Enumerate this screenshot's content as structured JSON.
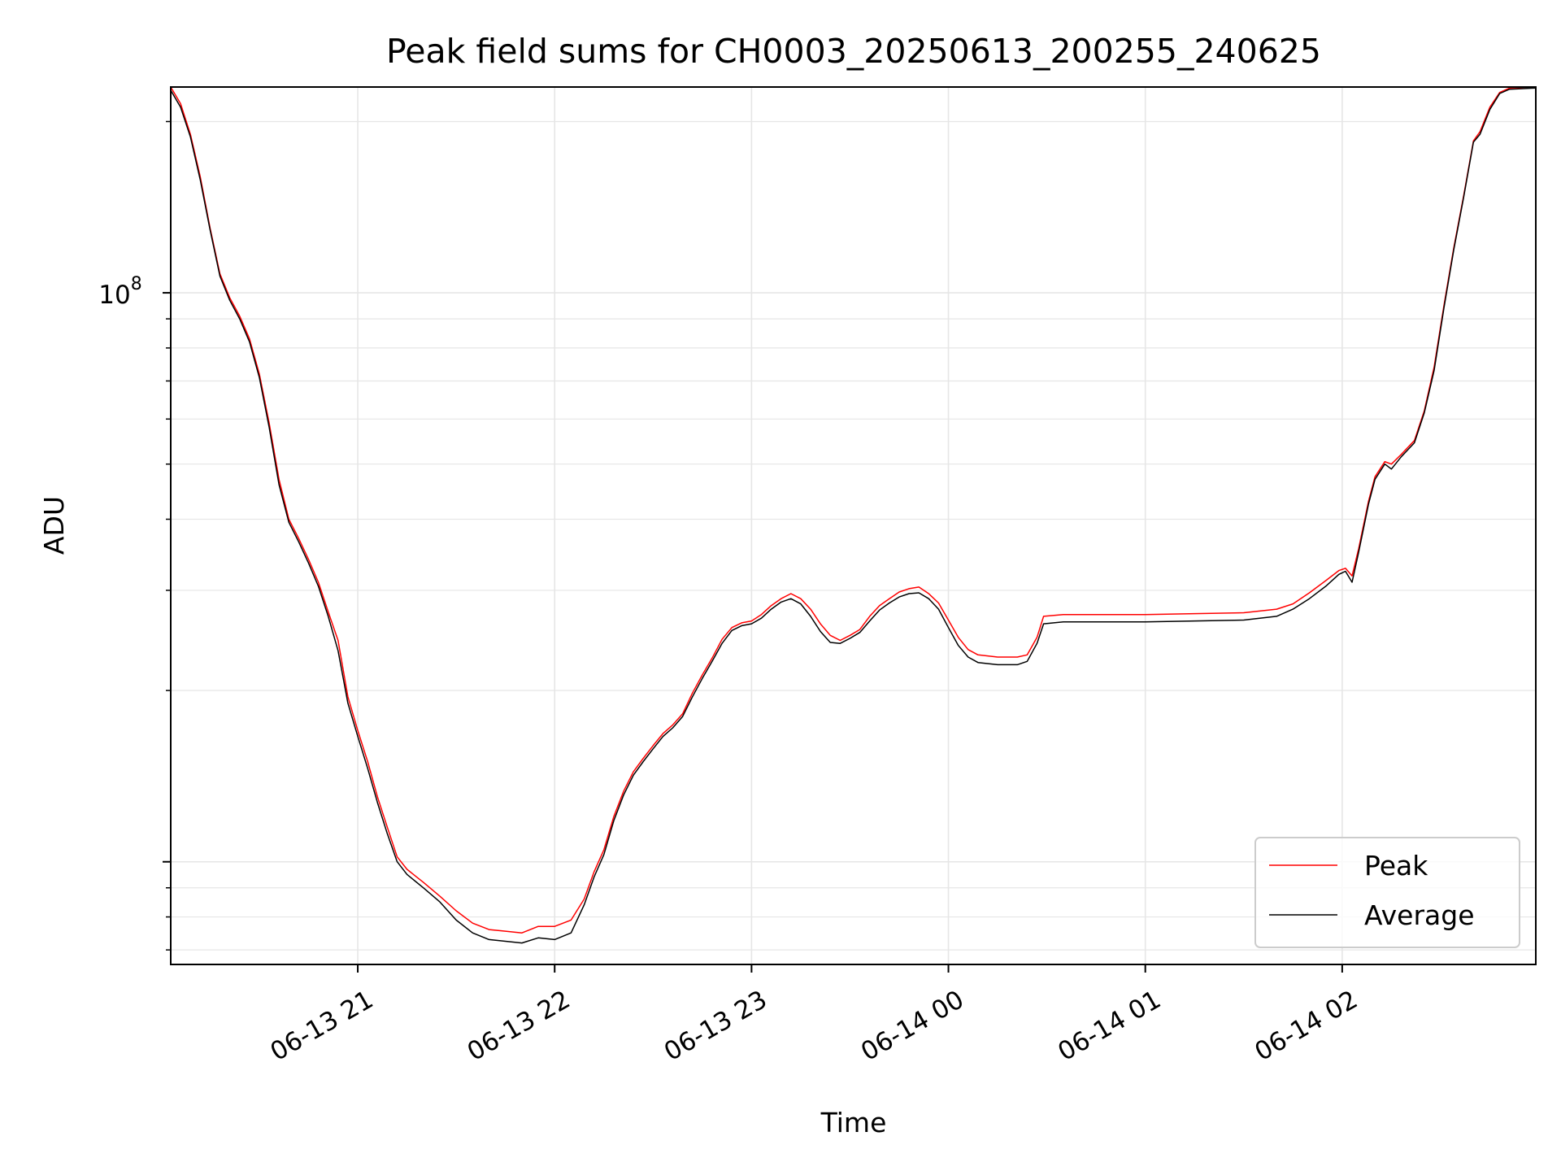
{
  "chart_data": {
    "type": "line",
    "title": "Peak field sums for CH0003_20250613_200255_240625",
    "xlabel": "Time",
    "ylabel": "ADU",
    "yscale": "log",
    "xlim": [
      "2025-06-13T20:03",
      "2025-06-14T02:59"
    ],
    "ylim": [
      6600000.0,
      230000000.0
    ],
    "grid": true,
    "legend_position": "lower right",
    "x_ticks": [
      {
        "t": "2025-06-13T21:00",
        "label": "06-13 21"
      },
      {
        "t": "2025-06-13T22:00",
        "label": "06-13 22"
      },
      {
        "t": "2025-06-13T23:00",
        "label": "06-13 23"
      },
      {
        "t": "2025-06-14T00:00",
        "label": "06-14 00"
      },
      {
        "t": "2025-06-14T01:00",
        "label": "06-14 01"
      },
      {
        "t": "2025-06-14T02:00",
        "label": "06-14 02"
      }
    ],
    "y_major_ticks": [
      {
        "value": 100000000.0,
        "base": "10",
        "exp": "8"
      }
    ],
    "series": [
      {
        "name": "Peak",
        "color": "#ff0000",
        "points": [
          [
            "2025-06-13T20:03",
            230000000.0
          ],
          [
            "2025-06-13T20:06",
            215000000.0
          ],
          [
            "2025-06-13T20:09",
            190000000.0
          ],
          [
            "2025-06-13T20:12",
            160000000.0
          ],
          [
            "2025-06-13T20:15",
            130000000.0
          ],
          [
            "2025-06-13T20:18",
            108000000.0
          ],
          [
            "2025-06-13T20:21",
            98000000.0
          ],
          [
            "2025-06-13T20:24",
            91000000.0
          ],
          [
            "2025-06-13T20:27",
            83000000.0
          ],
          [
            "2025-06-13T20:30",
            72000000.0
          ],
          [
            "2025-06-13T20:33",
            59000000.0
          ],
          [
            "2025-06-13T20:36",
            47000000.0
          ],
          [
            "2025-06-13T20:39",
            40000000.0
          ],
          [
            "2025-06-13T20:42",
            37000000.0
          ],
          [
            "2025-06-13T20:45",
            34000000.0
          ],
          [
            "2025-06-13T20:48",
            31000000.0
          ],
          [
            "2025-06-13T20:51",
            27500000.0
          ],
          [
            "2025-06-13T20:54",
            24500000.0
          ],
          [
            "2025-06-13T20:57",
            19500000.0
          ],
          [
            "2025-06-13T21:00",
            17000000.0
          ],
          [
            "2025-06-13T21:03",
            15000000.0
          ],
          [
            "2025-06-13T21:06",
            13000000.0
          ],
          [
            "2025-06-13T21:09",
            11500000.0
          ],
          [
            "2025-06-13T21:12",
            10200000.0
          ],
          [
            "2025-06-13T21:15",
            9700000.0
          ],
          [
            "2025-06-13T21:20",
            9200000.0
          ],
          [
            "2025-06-13T21:25",
            8700000.0
          ],
          [
            "2025-06-13T21:30",
            8200000.0
          ],
          [
            "2025-06-13T21:35",
            7800000.0
          ],
          [
            "2025-06-13T21:40",
            7600000.0
          ],
          [
            "2025-06-13T21:45",
            7550000.0
          ],
          [
            "2025-06-13T21:50",
            7500000.0
          ],
          [
            "2025-06-13T21:55",
            7700000.0
          ],
          [
            "2025-06-13T22:00",
            7700000.0
          ],
          [
            "2025-06-13T22:05",
            7900000.0
          ],
          [
            "2025-06-13T22:09",
            8600000.0
          ],
          [
            "2025-06-13T22:12",
            9600000.0
          ],
          [
            "2025-06-13T22:15",
            10500000.0
          ],
          [
            "2025-06-13T22:18",
            12000000.0
          ],
          [
            "2025-06-13T22:21",
            13300000.0
          ],
          [
            "2025-06-13T22:24",
            14400000.0
          ],
          [
            "2025-06-13T22:27",
            15200000.0
          ],
          [
            "2025-06-13T22:30",
            16000000.0
          ],
          [
            "2025-06-13T22:33",
            16800000.0
          ],
          [
            "2025-06-13T22:36",
            17400000.0
          ],
          [
            "2025-06-13T22:39",
            18200000.0
          ],
          [
            "2025-06-13T22:42",
            19800000.0
          ],
          [
            "2025-06-13T22:45",
            21300000.0
          ],
          [
            "2025-06-13T22:48",
            22800000.0
          ],
          [
            "2025-06-13T22:51",
            24600000.0
          ],
          [
            "2025-06-13T22:54",
            25800000.0
          ],
          [
            "2025-06-13T22:57",
            26300000.0
          ],
          [
            "2025-06-13T23:00",
            26500000.0
          ],
          [
            "2025-06-13T23:03",
            27200000.0
          ],
          [
            "2025-06-13T23:06",
            28200000.0
          ],
          [
            "2025-06-13T23:09",
            29000000.0
          ],
          [
            "2025-06-13T23:12",
            29600000.0
          ],
          [
            "2025-06-13T23:15",
            29000000.0
          ],
          [
            "2025-06-13T23:18",
            27800000.0
          ],
          [
            "2025-06-13T23:21",
            26200000.0
          ],
          [
            "2025-06-13T23:24",
            25000000.0
          ],
          [
            "2025-06-13T23:27",
            24500000.0
          ],
          [
            "2025-06-13T23:30",
            25000000.0
          ],
          [
            "2025-06-13T23:33",
            25600000.0
          ],
          [
            "2025-06-13T23:36",
            27000000.0
          ],
          [
            "2025-06-13T23:39",
            28200000.0
          ],
          [
            "2025-06-13T23:42",
            29000000.0
          ],
          [
            "2025-06-13T23:45",
            29800000.0
          ],
          [
            "2025-06-13T23:48",
            30200000.0
          ],
          [
            "2025-06-13T23:51",
            30400000.0
          ],
          [
            "2025-06-13T23:54",
            29600000.0
          ],
          [
            "2025-06-13T23:57",
            28500000.0
          ],
          [
            "2025-06-14T00:00",
            26600000.0
          ],
          [
            "2025-06-14T00:03",
            24800000.0
          ],
          [
            "2025-06-14T00:06",
            23600000.0
          ],
          [
            "2025-06-14T00:09",
            23100000.0
          ],
          [
            "2025-06-14T00:15",
            22900000.0
          ],
          [
            "2025-06-14T00:21",
            22900000.0
          ],
          [
            "2025-06-14T00:24",
            23100000.0
          ],
          [
            "2025-06-14T00:27",
            24800000.0
          ],
          [
            "2025-06-14T00:29",
            27000000.0
          ],
          [
            "2025-06-14T00:35",
            27200000.0
          ],
          [
            "2025-06-14T00:45",
            27200000.0
          ],
          [
            "2025-06-14T01:00",
            27200000.0
          ],
          [
            "2025-06-14T01:15",
            27300000.0
          ],
          [
            "2025-06-14T01:30",
            27400000.0
          ],
          [
            "2025-06-14T01:40",
            27800000.0
          ],
          [
            "2025-06-14T01:45",
            28400000.0
          ],
          [
            "2025-06-14T01:50",
            29700000.0
          ],
          [
            "2025-06-14T01:55",
            31200000.0
          ],
          [
            "2025-06-14T01:59",
            32500000.0
          ],
          [
            "2025-06-14T02:01",
            32800000.0
          ],
          [
            "2025-06-14T02:03",
            31800000.0
          ],
          [
            "2025-06-14T02:05",
            35500000.0
          ],
          [
            "2025-06-14T02:08",
            43000000.0
          ],
          [
            "2025-06-14T02:10",
            47500000.0
          ],
          [
            "2025-06-14T02:13",
            50500000.0
          ],
          [
            "2025-06-14T02:15",
            50000000.0
          ],
          [
            "2025-06-14T02:18",
            52000000.0
          ],
          [
            "2025-06-14T02:22",
            55000000.0
          ],
          [
            "2025-06-14T02:25",
            62000000.0
          ],
          [
            "2025-06-14T02:28",
            74000000.0
          ],
          [
            "2025-06-14T02:31",
            95000000.0
          ],
          [
            "2025-06-14T02:34",
            120000000.0
          ],
          [
            "2025-06-14T02:37",
            148000000.0
          ],
          [
            "2025-06-14T02:40",
            185000000.0
          ],
          [
            "2025-06-14T02:42",
            192000000.0
          ],
          [
            "2025-06-14T02:45",
            212000000.0
          ],
          [
            "2025-06-14T02:48",
            225000000.0
          ],
          [
            "2025-06-14T02:51",
            229000000.0
          ],
          [
            "2025-06-14T02:59",
            230000000.0
          ]
        ]
      },
      {
        "name": "Average",
        "color": "#000000",
        "points": [
          [
            "2025-06-13T20:03",
            227000000.0
          ],
          [
            "2025-06-13T20:06",
            212000000.0
          ],
          [
            "2025-06-13T20:09",
            188000000.0
          ],
          [
            "2025-06-13T20:12",
            158000000.0
          ],
          [
            "2025-06-13T20:15",
            129000000.0
          ],
          [
            "2025-06-13T20:18",
            107000000.0
          ],
          [
            "2025-06-13T20:21",
            97000000.0
          ],
          [
            "2025-06-13T20:24",
            90000000.0
          ],
          [
            "2025-06-13T20:27",
            82000000.0
          ],
          [
            "2025-06-13T20:30",
            71000000.0
          ],
          [
            "2025-06-13T20:33",
            58000000.0
          ],
          [
            "2025-06-13T20:36",
            46000000.0
          ],
          [
            "2025-06-13T20:39",
            39500000.0
          ],
          [
            "2025-06-13T20:42",
            36500000.0
          ],
          [
            "2025-06-13T20:45",
            33500000.0
          ],
          [
            "2025-06-13T20:48",
            30500000.0
          ],
          [
            "2025-06-13T20:51",
            27000000.0
          ],
          [
            "2025-06-13T20:54",
            23500000.0
          ],
          [
            "2025-06-13T20:57",
            19000000.0
          ],
          [
            "2025-06-13T21:00",
            16600000.0
          ],
          [
            "2025-06-13T21:03",
            14600000.0
          ],
          [
            "2025-06-13T21:06",
            12700000.0
          ],
          [
            "2025-06-13T21:09",
            11200000.0
          ],
          [
            "2025-06-13T21:12",
            10000000.0
          ],
          [
            "2025-06-13T21:15",
            9500000.0
          ],
          [
            "2025-06-13T21:20",
            9000000.0
          ],
          [
            "2025-06-13T21:25",
            8500000.0
          ],
          [
            "2025-06-13T21:30",
            7900000.0
          ],
          [
            "2025-06-13T21:35",
            7500000.0
          ],
          [
            "2025-06-13T21:40",
            7300000.0
          ],
          [
            "2025-06-13T21:45",
            7250000.0
          ],
          [
            "2025-06-13T21:50",
            7200000.0
          ],
          [
            "2025-06-13T21:55",
            7350000.0
          ],
          [
            "2025-06-13T22:00",
            7300000.0
          ],
          [
            "2025-06-13T22:05",
            7500000.0
          ],
          [
            "2025-06-13T22:09",
            8400000.0
          ],
          [
            "2025-06-13T22:12",
            9400000.0
          ],
          [
            "2025-06-13T22:15",
            10300000.0
          ],
          [
            "2025-06-13T22:18",
            11800000.0
          ],
          [
            "2025-06-13T22:21",
            13100000.0
          ],
          [
            "2025-06-13T22:24",
            14200000.0
          ],
          [
            "2025-06-13T22:27",
            15000000.0
          ],
          [
            "2025-06-13T22:30",
            15800000.0
          ],
          [
            "2025-06-13T22:33",
            16600000.0
          ],
          [
            "2025-06-13T22:36",
            17200000.0
          ],
          [
            "2025-06-13T22:39",
            18000000.0
          ],
          [
            "2025-06-13T22:42",
            19500000.0
          ],
          [
            "2025-06-13T22:45",
            21000000.0
          ],
          [
            "2025-06-13T22:48",
            22500000.0
          ],
          [
            "2025-06-13T22:51",
            24200000.0
          ],
          [
            "2025-06-13T22:54",
            25500000.0
          ],
          [
            "2025-06-13T22:57",
            26000000.0
          ],
          [
            "2025-06-13T23:00",
            26200000.0
          ],
          [
            "2025-06-13T23:03",
            26800000.0
          ],
          [
            "2025-06-13T23:06",
            27800000.0
          ],
          [
            "2025-06-13T23:09",
            28600000.0
          ],
          [
            "2025-06-13T23:12",
            29000000.0
          ],
          [
            "2025-06-13T23:15",
            28400000.0
          ],
          [
            "2025-06-13T23:18",
            27000000.0
          ],
          [
            "2025-06-13T23:21",
            25400000.0
          ],
          [
            "2025-06-13T23:24",
            24300000.0
          ],
          [
            "2025-06-13T23:27",
            24200000.0
          ],
          [
            "2025-06-13T23:30",
            24700000.0
          ],
          [
            "2025-06-13T23:33",
            25300000.0
          ],
          [
            "2025-06-13T23:36",
            26500000.0
          ],
          [
            "2025-06-13T23:39",
            27700000.0
          ],
          [
            "2025-06-13T23:42",
            28500000.0
          ],
          [
            "2025-06-13T23:45",
            29200000.0
          ],
          [
            "2025-06-13T23:48",
            29600000.0
          ],
          [
            "2025-06-13T23:51",
            29700000.0
          ],
          [
            "2025-06-13T23:54",
            29000000.0
          ],
          [
            "2025-06-13T23:57",
            27800000.0
          ],
          [
            "2025-06-14T00:00",
            25800000.0
          ],
          [
            "2025-06-14T00:03",
            24000000.0
          ],
          [
            "2025-06-14T00:06",
            22900000.0
          ],
          [
            "2025-06-14T00:09",
            22400000.0
          ],
          [
            "2025-06-14T00:15",
            22200000.0
          ],
          [
            "2025-06-14T00:21",
            22200000.0
          ],
          [
            "2025-06-14T00:24",
            22500000.0
          ],
          [
            "2025-06-14T00:27",
            24200000.0
          ],
          [
            "2025-06-14T00:29",
            26200000.0
          ],
          [
            "2025-06-14T00:35",
            26400000.0
          ],
          [
            "2025-06-14T00:45",
            26400000.0
          ],
          [
            "2025-06-14T01:00",
            26400000.0
          ],
          [
            "2025-06-14T01:15",
            26500000.0
          ],
          [
            "2025-06-14T01:30",
            26600000.0
          ],
          [
            "2025-06-14T01:40",
            27000000.0
          ],
          [
            "2025-06-14T01:45",
            27800000.0
          ],
          [
            "2025-06-14T01:50",
            29000000.0
          ],
          [
            "2025-06-14T01:55",
            30500000.0
          ],
          [
            "2025-06-14T01:59",
            32000000.0
          ],
          [
            "2025-06-14T02:01",
            32400000.0
          ],
          [
            "2025-06-14T02:03",
            31000000.0
          ],
          [
            "2025-06-14T02:05",
            35000000.0
          ],
          [
            "2025-06-14T02:08",
            42500000.0
          ],
          [
            "2025-06-14T02:10",
            47000000.0
          ],
          [
            "2025-06-14T02:13",
            50000000.0
          ],
          [
            "2025-06-14T02:15",
            49000000.0
          ],
          [
            "2025-06-14T02:18",
            51500000.0
          ],
          [
            "2025-06-14T02:22",
            54500000.0
          ],
          [
            "2025-06-14T02:25",
            61500000.0
          ],
          [
            "2025-06-14T02:28",
            73000000.0
          ],
          [
            "2025-06-14T02:31",
            94000000.0
          ],
          [
            "2025-06-14T02:34",
            119000000.0
          ],
          [
            "2025-06-14T02:37",
            147000000.0
          ],
          [
            "2025-06-14T02:40",
            184000000.0
          ],
          [
            "2025-06-14T02:42",
            190000000.0
          ],
          [
            "2025-06-14T02:45",
            210000000.0
          ],
          [
            "2025-06-14T02:48",
            224000000.0
          ],
          [
            "2025-06-14T02:51",
            228000000.0
          ],
          [
            "2025-06-14T02:59",
            229000000.0
          ]
        ]
      }
    ]
  }
}
